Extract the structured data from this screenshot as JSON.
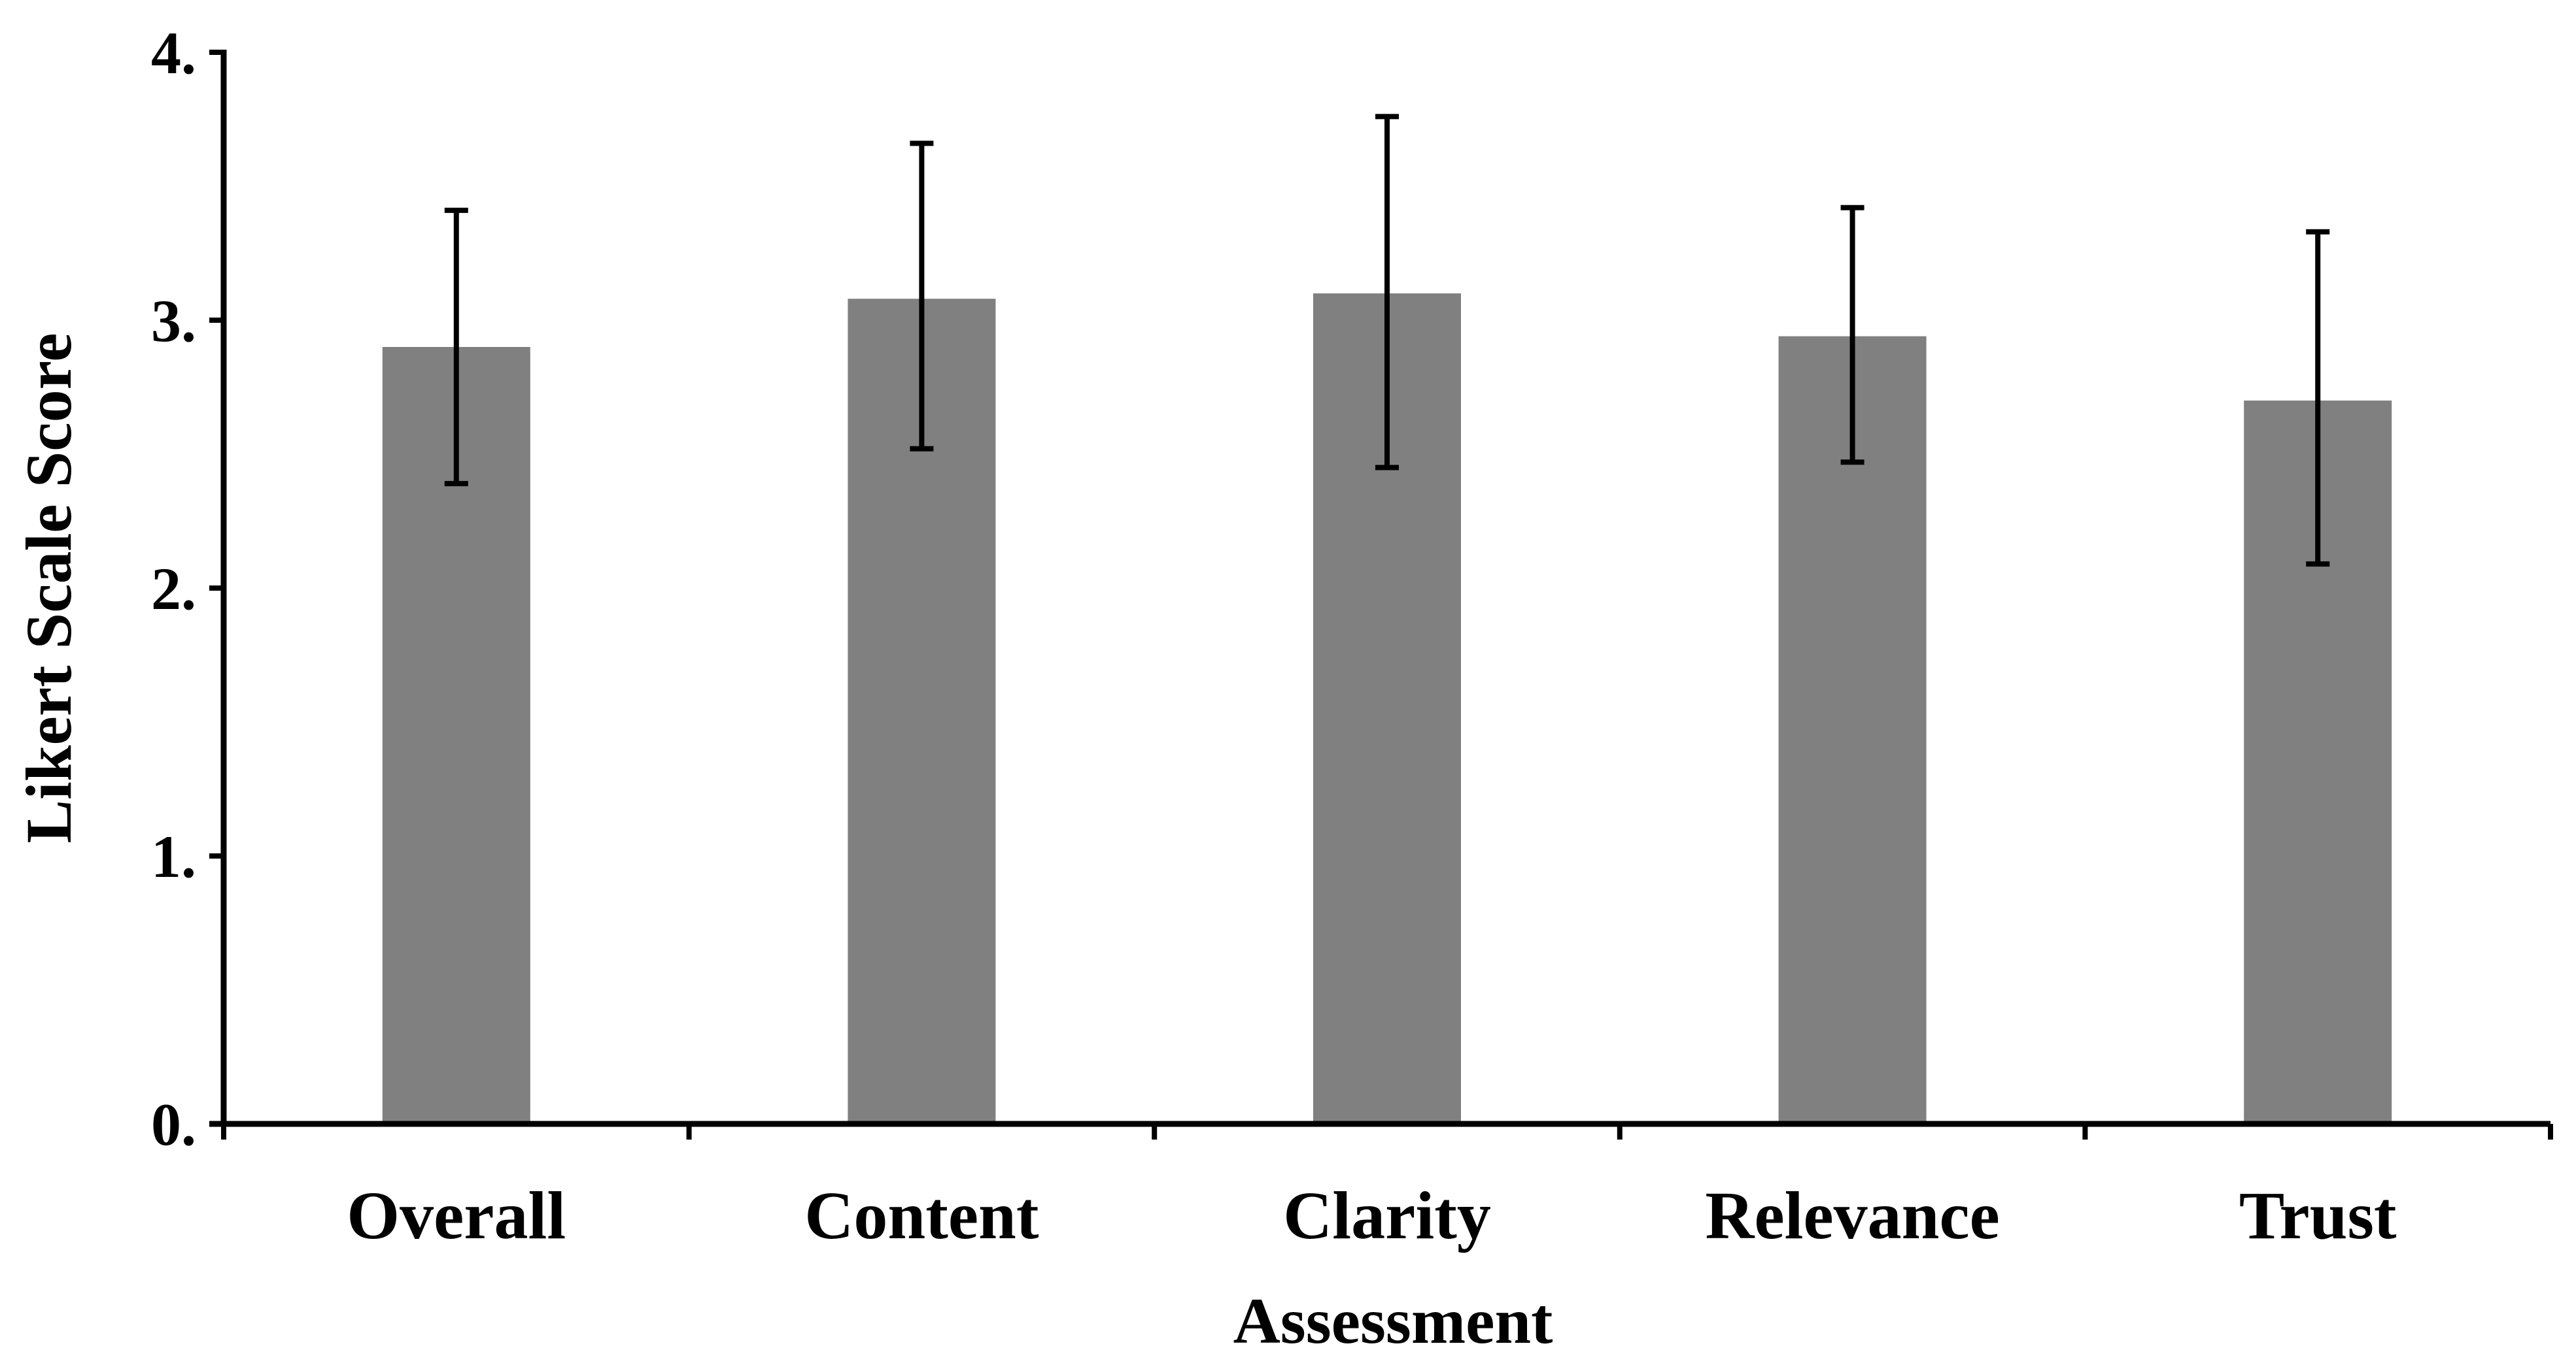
{
  "chart_data": {
    "type": "bar",
    "categories": [
      "Overall",
      "Content",
      "Clarity",
      "Relevance",
      "Trust"
    ],
    "values": [
      2.9,
      3.08,
      3.1,
      2.94,
      2.7
    ],
    "error_upper": [
      3.41,
      3.66,
      3.76,
      3.42,
      3.33
    ],
    "error_lower": [
      2.39,
      2.52,
      2.45,
      2.47,
      2.09
    ],
    "title": "",
    "xlabel": "Assessment",
    "ylabel": "Likert Scale Score",
    "ylim": [
      0,
      4
    ],
    "yticks": [
      0,
      1,
      2,
      3,
      4
    ],
    "ytick_labels": [
      "0.",
      "1.",
      "2.",
      "3.",
      "4."
    ],
    "grid": false,
    "legend": "none",
    "bar_color": "#808080",
    "axis_color": "#000000"
  }
}
